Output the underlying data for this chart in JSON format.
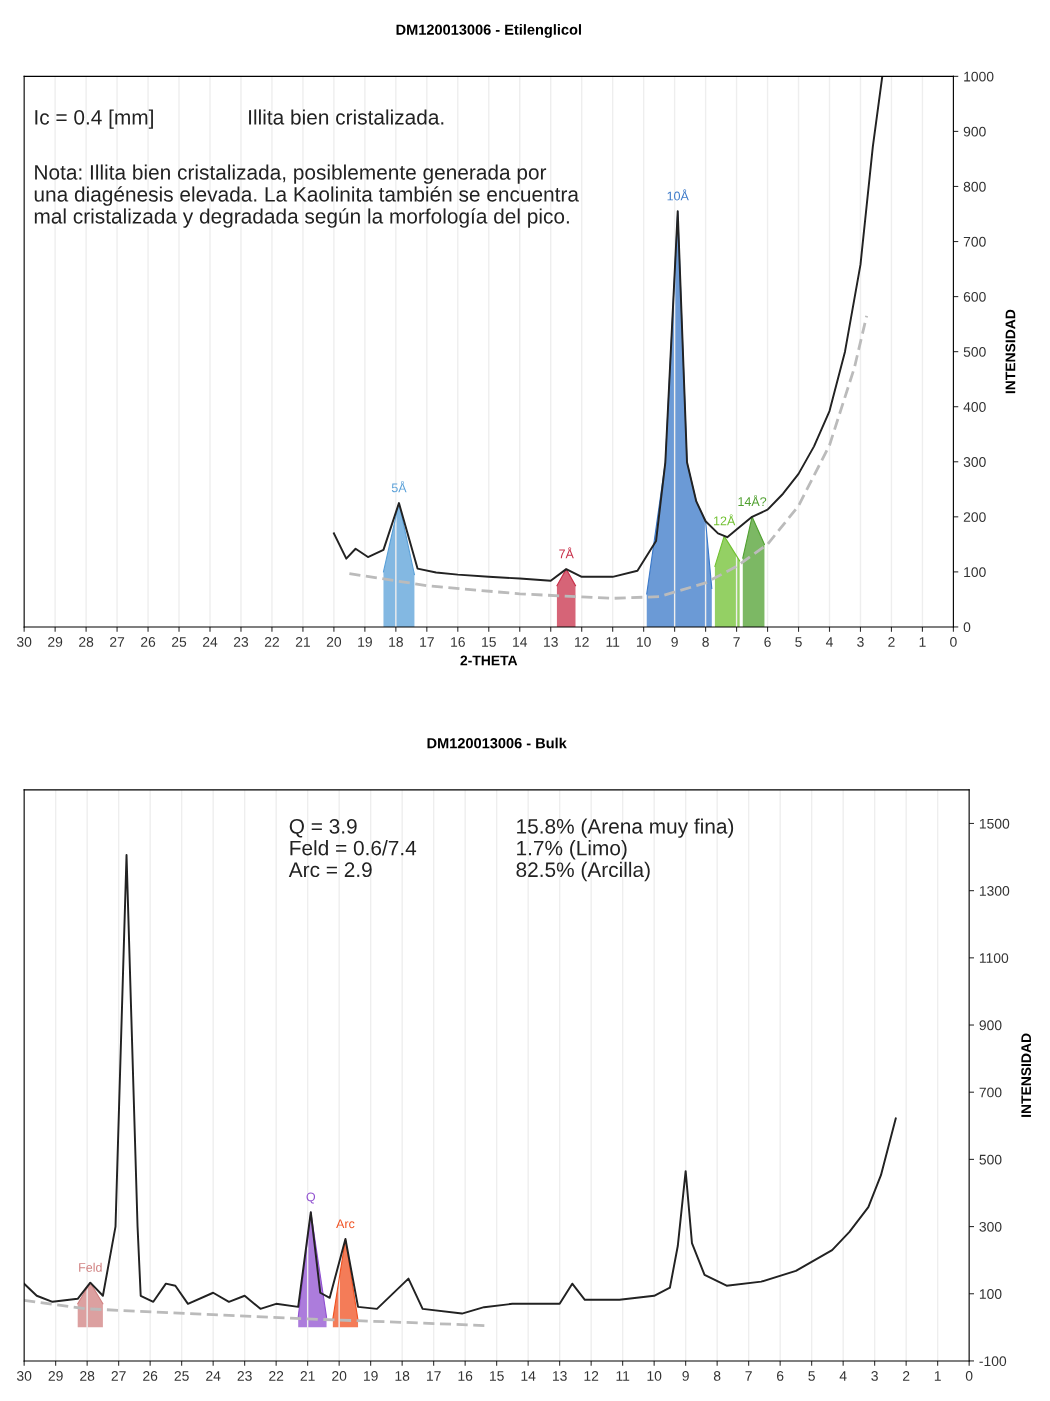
{
  "chart_data": [
    {
      "type": "line",
      "title": "DM120013006 - Etilenglicol",
      "xlabel": "2-THETA",
      "ylabel": "INTENSIDAD",
      "xlim": [
        30,
        0
      ],
      "xticks": [
        30,
        29,
        28,
        27,
        26,
        25,
        24,
        23,
        22,
        21,
        20,
        19,
        18,
        17,
        16,
        15,
        14,
        13,
        12,
        11,
        10,
        9,
        8,
        7,
        6,
        5,
        4,
        3,
        2,
        1,
        0
      ],
      "ylim": [
        0,
        1000
      ],
      "yticks": [
        0,
        100,
        200,
        300,
        400,
        500,
        600,
        700,
        800,
        900,
        1000
      ],
      "grid": "x",
      "series": [
        {
          "type": "area",
          "name": "5Å",
          "color": "#5aa0d8",
          "x": [
            18.4,
            17.9,
            17.4
          ],
          "values": [
            100,
            225,
            95
          ]
        },
        {
          "type": "area",
          "name": "7Å",
          "color": "#c8304a",
          "x": [
            12.8,
            12.5,
            12.2
          ],
          "values": [
            75,
            105,
            75
          ]
        },
        {
          "type": "area",
          "name": "10Å",
          "color": "#3a78c8",
          "x": [
            9.9,
            9.3,
            8.9,
            8.6,
            8.3,
            8.0,
            7.8
          ],
          "values": [
            60,
            299,
            755,
            299,
            228,
            192,
            70
          ]
        },
        {
          "type": "area",
          "name": "12Å",
          "color": "#70c030",
          "x": [
            7.7,
            7.4,
            6.9
          ],
          "values": [
            110,
            165,
            120
          ]
        },
        {
          "type": "area",
          "name": "14Å?",
          "color": "#50a030",
          "x": [
            6.8,
            6.5,
            6.1
          ],
          "values": [
            125,
            200,
            150
          ]
        },
        {
          "color": "#bbbbbb",
          "line_style": "dashed",
          "x": [
            19.5,
            17,
            14,
            11,
            9.5,
            8,
            7,
            6,
            5,
            4,
            3.2,
            2.8
          ],
          "values": [
            97,
            75,
            60,
            52,
            55,
            80,
            110,
            150,
            220,
            330,
            470,
            565
          ]
        },
        {
          "color": "#222222",
          "x": [
            20,
            19.6,
            19.3,
            18.9,
            18.4,
            17.9,
            17.3,
            16.7,
            16,
            15,
            14,
            13,
            12.5,
            12,
            11,
            10.2,
            9.6,
            9.3,
            8.9,
            8.6,
            8.3,
            8,
            7.6,
            7.3,
            7,
            6.5,
            6,
            5.5,
            5,
            4.5,
            4,
            3.5,
            3,
            2.6,
            2.3
          ],
          "values": [
            170,
            124,
            142,
            127,
            140,
            225,
            106,
            99,
            95,
            91,
            88,
            84,
            105,
            91,
            91,
            102,
            156,
            299,
            755,
            299,
            228,
            192,
            170,
            163,
            177,
            200,
            213,
            242,
            278,
            328,
            392,
            500,
            658,
            873,
            998
          ]
        }
      ],
      "annotations": [
        "Ic = 0.4 [mm]",
        "Illita bien cristalizada.",
        "Nota: Illita bien cristalizada, posiblemente generada por\nuna diagénesis elevada. La Kaolinita también se encuentra\nmal cristalizada y degradada según la morfología del pico."
      ]
    },
    {
      "type": "line",
      "title": "DM120013006 - Bulk",
      "ylabel": "INTENSIDAD",
      "xlim": [
        30,
        0
      ],
      "xticks": [
        30,
        29,
        28,
        27,
        26,
        25,
        24,
        23,
        22,
        21,
        20,
        19,
        18,
        17,
        16,
        15,
        14,
        13,
        12,
        11,
        10,
        9,
        8,
        7,
        6,
        5,
        4,
        3,
        2,
        1,
        0
      ],
      "ylim": [
        -100,
        1600
      ],
      "yticks": [
        -100,
        100,
        300,
        500,
        700,
        900,
        1100,
        1300,
        1500
      ],
      "grid": "x",
      "series": [
        {
          "type": "area",
          "name": "Feld",
          "color": "#d08080",
          "x": [
            28.3,
            27.9,
            27.5
          ],
          "values": [
            70,
            133,
            70
          ]
        },
        {
          "type": "area",
          "name": "Q",
          "color": "#9050d0",
          "x": [
            21.3,
            20.9,
            20.4
          ],
          "values": [
            30,
            343,
            30
          ]
        },
        {
          "type": "area",
          "name": "Arc",
          "color": "#f05020",
          "x": [
            20.2,
            19.8,
            19.4
          ],
          "values": [
            25,
            263,
            20
          ]
        },
        {
          "color": "#bbbbbb",
          "line_style": "dashed",
          "x": [
            30,
            28,
            24,
            21,
            18,
            15.3
          ],
          "values": [
            80,
            55,
            38,
            25,
            15,
            5
          ]
        },
        {
          "color": "#222222",
          "x": [
            30,
            29.6,
            29.1,
            28.3,
            27.9,
            27.5,
            27.1,
            26.75,
            26.4,
            26.3,
            25.9,
            25.5,
            25.2,
            24.8,
            24,
            23.5,
            23,
            22.5,
            22,
            21.3,
            20.9,
            20.6,
            20.3,
            19.8,
            19.4,
            18.8,
            17.8,
            17.35,
            16.1,
            15.4,
            14.5,
            13,
            12.6,
            12.2,
            11.1,
            10,
            9.5,
            9.25,
            9,
            8.8,
            8.4,
            7.7,
            6.6,
            5.5,
            4.35,
            3.8,
            3.2,
            2.8,
            2.33
          ],
          "values": [
            130,
            94,
            76,
            85,
            133,
            94,
            300,
            1406,
            300,
            94,
            76,
            130,
            124,
            70,
            103,
            76,
            94,
            55,
            70,
            61,
            343,
            103,
            88,
            263,
            61,
            55,
            145,
            55,
            41,
            60,
            70,
            70,
            130,
            82,
            82,
            94,
            118,
            242,
            465,
            251,
            156,
            124,
            136,
            168,
            230,
            284,
            358,
            453,
            622
          ]
        }
      ],
      "annotations": [
        "Q = 3.9\nFeld = 0.6/7.4\nArc = 2.9",
        "15.8% (Arena muy fina)\n1.7% (Limo)\n82.5% (Arcilla)"
      ]
    }
  ]
}
